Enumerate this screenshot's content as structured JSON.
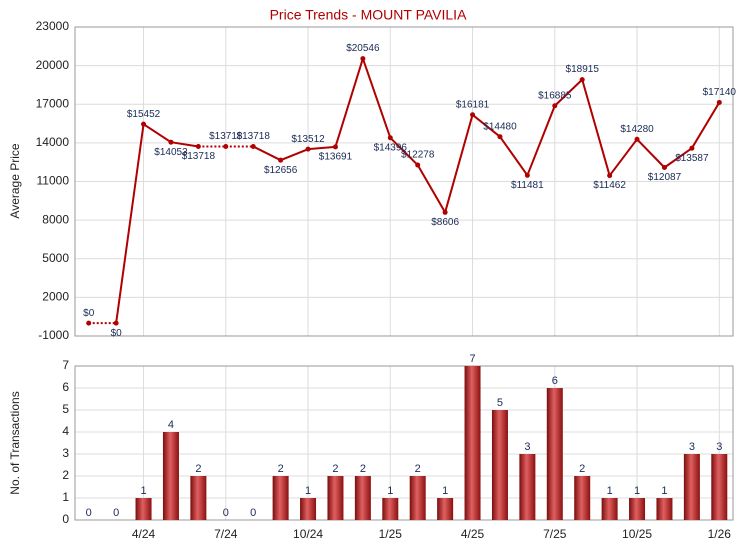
{
  "chart_data": [
    {
      "type": "line",
      "title": "Price Trends - MOUNT PAVILIA",
      "ylabel": "Average Price",
      "color": "#b00000",
      "values": [
        0,
        0,
        15452,
        14053,
        13718,
        13718,
        13718,
        12656,
        13512,
        13691,
        20546,
        14396,
        12278,
        8606,
        16181,
        14480,
        11481,
        16885,
        18915,
        11462,
        14280,
        12087,
        13587,
        17140
      ],
      "value_labels": [
        "$0",
        "$0",
        "$15452",
        "$14053",
        "$13718",
        "$13718",
        "$13718",
        "$12656",
        "$13512",
        "$13691",
        "$20546",
        "$14396",
        "$12278",
        "$8606",
        "$16181",
        "$14480",
        "$11481",
        "$16885",
        "$18915",
        "$11462",
        "$14280",
        "$12087",
        "$13587",
        "$17140"
      ],
      "ylim": [
        -1000,
        23000
      ],
      "yticks": [
        -1000,
        2000,
        5000,
        8000,
        11000,
        14000,
        17000,
        20000,
        23000
      ],
      "grid": true
    },
    {
      "type": "bar",
      "ylabel": "No. of Transactions",
      "color": "#b81c1c",
      "categories": [
        null,
        null,
        "4/24",
        null,
        null,
        "7/24",
        null,
        null,
        "10/24",
        null,
        null,
        "1/25",
        null,
        null,
        "4/25",
        null,
        null,
        "7/25",
        null,
        null,
        "10/25",
        null,
        null,
        "1/26"
      ],
      "values": [
        0,
        0,
        1,
        4,
        2,
        0,
        0,
        2,
        1,
        2,
        2,
        1,
        2,
        1,
        7,
        5,
        3,
        6,
        2,
        1,
        1,
        1,
        3,
        3
      ],
      "ylim": [
        0,
        7
      ],
      "yticks": [
        0,
        1,
        2,
        3,
        4,
        5,
        6,
        7
      ],
      "grid": true
    }
  ]
}
